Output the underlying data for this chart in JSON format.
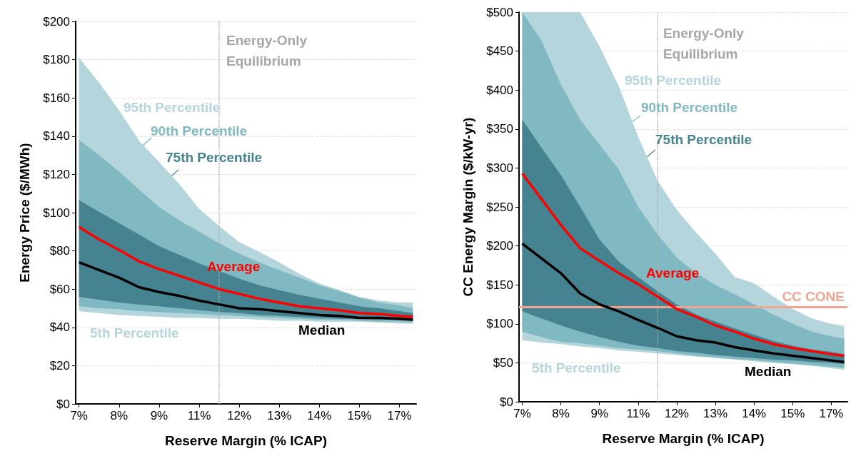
{
  "chart_data": [
    {
      "type": "area",
      "xlabel": "Reserve Margin (% ICAP)",
      "ylabel": "Energy Price ($/MWh)",
      "grid": "y",
      "legend": false,
      "xlim": [
        6.9,
        17.1
      ],
      "xticks": [
        {
          "value": 7,
          "label": "7%"
        },
        {
          "value": 8.2,
          "label": "8%"
        },
        {
          "value": 9.4,
          "label": "9%"
        },
        {
          "value": 10.6,
          "label": "11%"
        },
        {
          "value": 11.8,
          "label": "12%"
        },
        {
          "value": 13,
          "label": "13%"
        },
        {
          "value": 14.2,
          "label": "14%"
        },
        {
          "value": 15.4,
          "label": "15%"
        },
        {
          "value": 16.6,
          "label": "17%"
        }
      ],
      "ylim": [
        0,
        200
      ],
      "yticks": [
        {
          "value": 0,
          "label": "$0"
        },
        {
          "value": 20,
          "label": "$20"
        },
        {
          "value": 40,
          "label": "$40"
        },
        {
          "value": 60,
          "label": "$60"
        },
        {
          "value": 80,
          "label": "$80"
        },
        {
          "value": 100,
          "label": "$100"
        },
        {
          "value": 120,
          "label": "$120"
        },
        {
          "value": 140,
          "label": "$140"
        },
        {
          "value": 160,
          "label": "$160"
        },
        {
          "value": 180,
          "label": "$180"
        },
        {
          "value": 200,
          "label": "$200"
        }
      ],
      "ref_lines": [
        {
          "axis": "x",
          "value": 11.2,
          "label": "Energy-Only Equilibrium",
          "color": "#a6a6a6",
          "line_style": "dotted"
        }
      ],
      "x": [
        7,
        7.6,
        8.2,
        8.8,
        9.4,
        10,
        10.6,
        11.2,
        11.8,
        12.4,
        13,
        13.6,
        14.2,
        14.8,
        15.4,
        16,
        16.6,
        17
      ],
      "series": [
        {
          "name": "95th Percentile",
          "color": "#b4d5db",
          "values": [
            null,
            null,
            null,
            null,
            null,
            null,
            null,
            null,
            null,
            null,
            null,
            null,
            null,
            null,
            null,
            null,
            null,
            null
          ],
          "upper": [
            181,
            168,
            153.5,
            137.5,
            126.5,
            115,
            102,
            93,
            84.5,
            79.5,
            74,
            68,
            63,
            59.5,
            56,
            54,
            53,
            53
          ],
          "lower": [
            48.5,
            47.5,
            46.5,
            46,
            45.5,
            45,
            45,
            44.5,
            44.5,
            44,
            43.5,
            43.5,
            43,
            43,
            43,
            42.5,
            42,
            42
          ]
        },
        {
          "name": "90th Percentile",
          "color": "#80b9c2",
          "values": [
            null,
            null,
            null,
            null,
            null,
            null,
            null,
            null,
            null,
            null,
            null,
            null,
            null,
            null,
            null,
            null,
            null,
            null
          ],
          "upper": [
            138,
            130,
            121.5,
            112,
            103,
            96,
            90,
            84,
            78.5,
            74,
            70,
            66,
            62,
            59,
            55.5,
            53,
            51.5,
            50
          ],
          "lower": [
            51,
            50,
            49.5,
            48.5,
            48,
            47.5,
            47,
            46.5,
            46,
            45.5,
            45,
            44.5,
            44,
            44,
            43.5,
            43,
            43,
            42.5
          ]
        },
        {
          "name": "75th Percentile",
          "color": "#468390",
          "values": [
            null,
            null,
            null,
            null,
            null,
            null,
            null,
            null,
            null,
            null,
            null,
            null,
            null,
            null,
            null,
            null,
            null,
            null
          ],
          "upper": [
            106.5,
            100.5,
            94.5,
            88.5,
            82.5,
            78,
            73.5,
            69.5,
            65.5,
            62,
            59.5,
            57,
            55,
            53,
            51,
            50,
            48.5,
            47.5
          ],
          "lower": [
            56,
            54.5,
            53,
            52,
            51,
            50,
            49,
            48,
            47.5,
            46.5,
            46,
            45.5,
            45,
            44.5,
            44.5,
            44,
            44,
            43.5
          ]
        },
        {
          "name": "Average",
          "type": "line",
          "color": "#ff0000",
          "values": [
            92.5,
            86,
            80.5,
            74.5,
            70.5,
            67,
            63.5,
            60,
            57.5,
            55,
            53,
            51,
            50,
            49,
            47.5,
            47,
            46,
            45.5
          ]
        },
        {
          "name": "Median",
          "type": "line",
          "color": "#000000",
          "values": [
            74,
            70,
            66,
            61,
            58.5,
            56.5,
            54,
            52,
            50,
            49.5,
            48.5,
            47.5,
            46.5,
            46,
            45,
            45,
            44.5,
            44
          ]
        }
      ],
      "annotations": [
        "5th Percentile"
      ]
    },
    {
      "type": "area",
      "xlabel": "Reserve Margin (% ICAP)",
      "ylabel": "CC Energy Margin ($/kW-yr)",
      "grid": "y",
      "legend": false,
      "xlim": [
        6.9,
        17.1
      ],
      "xticks": [
        {
          "value": 7,
          "label": "7%"
        },
        {
          "value": 8.2,
          "label": "8%"
        },
        {
          "value": 9.4,
          "label": "9%"
        },
        {
          "value": 10.6,
          "label": "11%"
        },
        {
          "value": 11.8,
          "label": "12%"
        },
        {
          "value": 13,
          "label": "13%"
        },
        {
          "value": 14.2,
          "label": "14%"
        },
        {
          "value": 15.4,
          "label": "15%"
        },
        {
          "value": 16.6,
          "label": "17%"
        }
      ],
      "ylim": [
        0,
        500
      ],
      "yticks": [
        {
          "value": 0,
          "label": "$0"
        },
        {
          "value": 50,
          "label": "$50"
        },
        {
          "value": 100,
          "label": "$100"
        },
        {
          "value": 150,
          "label": "$150"
        },
        {
          "value": 200,
          "label": "$200"
        },
        {
          "value": 250,
          "label": "$250"
        },
        {
          "value": 300,
          "label": "$300"
        },
        {
          "value": 350,
          "label": "$350"
        },
        {
          "value": 400,
          "label": "$400"
        },
        {
          "value": 450,
          "label": "$450"
        },
        {
          "value": 500,
          "label": "$500"
        }
      ],
      "ref_lines": [
        {
          "axis": "x",
          "value": 11.2,
          "label": "Energy-Only Equilibrium",
          "color": "#a6a6a6",
          "line_style": "dotted"
        },
        {
          "axis": "y",
          "value": 122,
          "label": "CC CONE",
          "color": "#f4a391",
          "line_style": "solid"
        }
      ],
      "x": [
        7,
        7.6,
        8.2,
        8.8,
        9.4,
        10,
        10.6,
        11.2,
        11.8,
        12.4,
        13,
        13.6,
        14.2,
        14.8,
        15.4,
        16,
        16.6,
        17
      ],
      "series": [
        {
          "name": "95th Percentile",
          "color": "#b4d5db",
          "values": [
            null,
            null,
            null,
            null,
            null,
            null,
            null,
            null,
            null,
            null,
            null,
            null,
            null,
            null,
            null,
            null,
            null,
            null
          ],
          "upper": [
            500,
            500,
            500,
            500,
            456,
            405,
            340,
            284,
            246,
            217,
            190,
            160,
            152,
            135,
            119,
            107,
            100,
            97
          ],
          "lower": [
            79,
            76,
            74,
            71,
            69,
            66,
            64,
            62,
            60,
            58,
            56,
            54,
            52,
            50,
            48,
            46,
            43,
            41
          ]
        },
        {
          "name": "90th Percentile",
          "color": "#80b9c2",
          "values": [
            null,
            null,
            null,
            null,
            null,
            null,
            null,
            null,
            null,
            null,
            null,
            null,
            null,
            null,
            null,
            null,
            null,
            null
          ],
          "upper": [
            500,
            463,
            407,
            362,
            330,
            298,
            250,
            215,
            185,
            165,
            150,
            138,
            125,
            112,
            100,
            90,
            84,
            81
          ],
          "lower": [
            90,
            83,
            77,
            75,
            72,
            69,
            67,
            65,
            62,
            59,
            57,
            55,
            53,
            51,
            49,
            47,
            45,
            43
          ]
        },
        {
          "name": "75th Percentile",
          "color": "#468390",
          "values": [
            null,
            null,
            null,
            null,
            null,
            null,
            null,
            null,
            null,
            null,
            null,
            null,
            null,
            null,
            null,
            null,
            null,
            null
          ],
          "upper": [
            362,
            326,
            291,
            250,
            208,
            180,
            160,
            142,
            125,
            112,
            103,
            94,
            86,
            78,
            72,
            67,
            64,
            61
          ],
          "lower": [
            116,
            107,
            98,
            90,
            83,
            77,
            72,
            69,
            65,
            63,
            60,
            58,
            56,
            54,
            53,
            51,
            50,
            48
          ]
        },
        {
          "name": "Average",
          "type": "line",
          "color": "#ff0000",
          "values": [
            293,
            260,
            227,
            197,
            181,
            165,
            151,
            135,
            119,
            109,
            98,
            90,
            81,
            74,
            69,
            65,
            61,
            59
          ]
        },
        {
          "name": "Median",
          "type": "line",
          "color": "#000000",
          "values": [
            203,
            184,
            165,
            139,
            125,
            116,
            105,
            95,
            84,
            79,
            76,
            70,
            66,
            62,
            59,
            56,
            53,
            51
          ]
        }
      ],
      "annotations": [
        "5th Percentile"
      ]
    }
  ]
}
